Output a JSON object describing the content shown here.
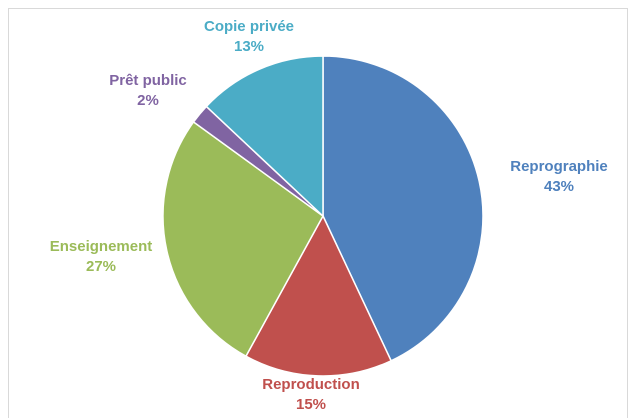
{
  "chart_data": {
    "type": "pie",
    "title": "",
    "slices": [
      {
        "label": "Reprographie",
        "value": 43,
        "value_label": "43%",
        "color": "#4F81BD"
      },
      {
        "label": "Reproduction",
        "value": 15,
        "value_label": "15%",
        "color": "#C0504D"
      },
      {
        "label": "Enseignement",
        "value": 27,
        "value_label": "27%",
        "color": "#9BBB59"
      },
      {
        "label": "Prêt public",
        "value": 2,
        "value_label": "2%",
        "color": "#8064A2"
      },
      {
        "label": "Copie privée",
        "value": 13,
        "value_label": "13%",
        "color": "#4BACC6"
      }
    ],
    "start": "12-o'clock",
    "direction": "clockwise",
    "legend": "none",
    "labels": "outside"
  }
}
